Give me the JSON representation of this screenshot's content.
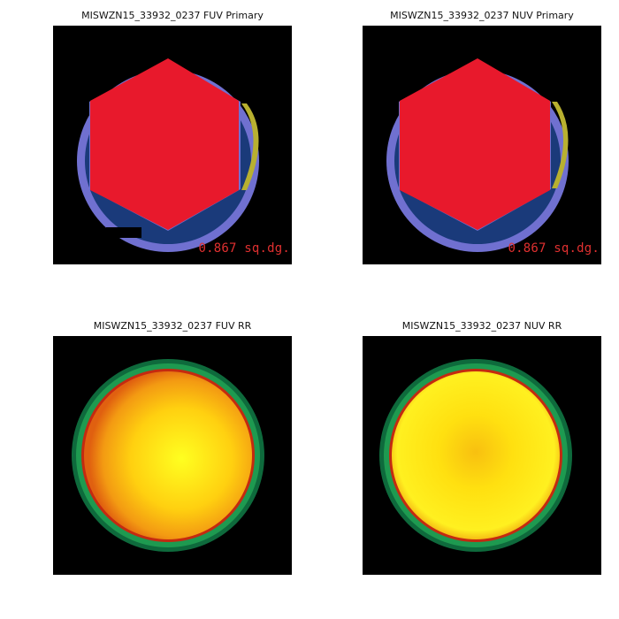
{
  "panels": {
    "fuv_primary": {
      "title": "MISWZN15_33932_0237 FUV Primary",
      "area_label": "0.867 sq.dg."
    },
    "nuv_primary": {
      "title": "MISWZN15_33932_0237 NUV Primary",
      "area_label": "0.867 sq.dg."
    },
    "fuv_rr": {
      "title": "MISWZN15_33932_0237 FUV RR"
    },
    "nuv_rr": {
      "title": "MISWZN15_33932_0237 NUV RR"
    }
  },
  "colors": {
    "background": "#000000",
    "hexagon": "#e8192c",
    "outer_ring": "#7070d0",
    "inner_disc": "#1a3a7a",
    "edge_crescent": "#b8b030",
    "rr_ring_outer": "#0e6a3c",
    "rr_ring_mid": "#1e9a50",
    "rr_rim_red": "#c42a10",
    "rr_center": "#ffef10",
    "rr_edge": "#f07a10"
  }
}
